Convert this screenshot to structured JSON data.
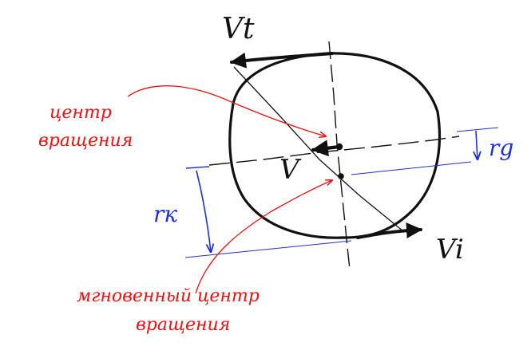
{
  "labels": {
    "v_top": "Vt",
    "v_center": "V",
    "v_bottom": "Vi",
    "radius_upper": "rg",
    "radius_lower": "rк",
    "rotation_center": [
      "центр",
      "вращения"
    ],
    "instant_rotation_center": [
      "мгновенный центр",
      "вращения"
    ]
  },
  "colors": {
    "ink": "#111111",
    "annotation": "#ee1111",
    "dimension": "#1e2fd6"
  }
}
